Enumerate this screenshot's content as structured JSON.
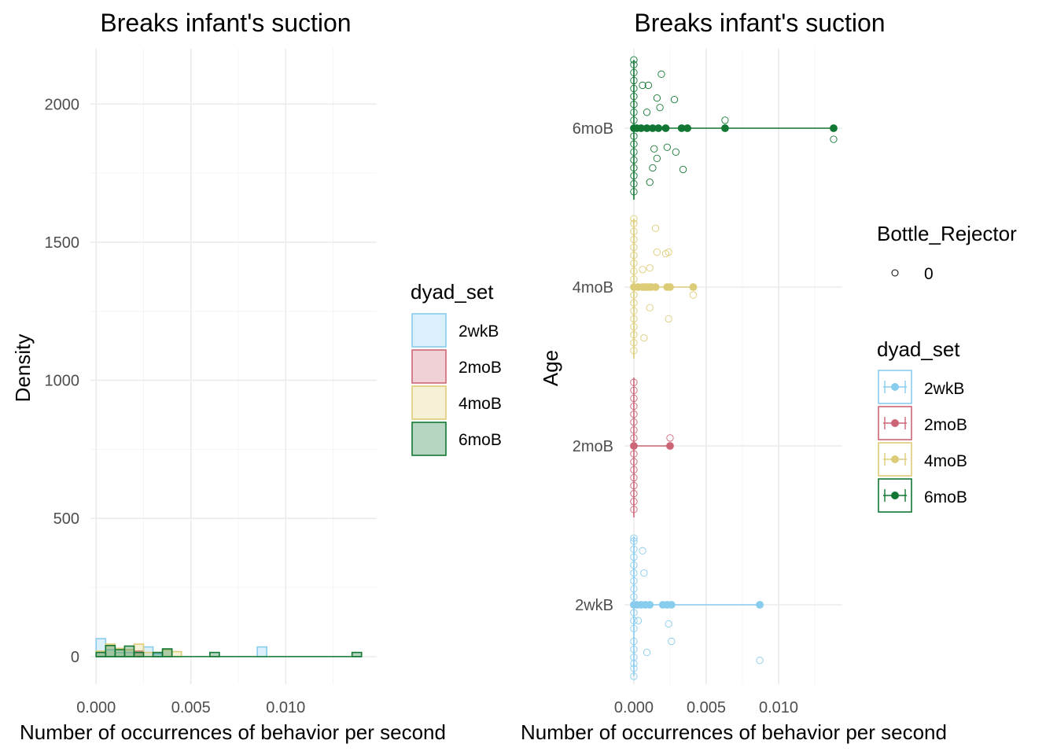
{
  "colors": {
    "2wkB": "#88CCEE",
    "2moB": "#CC6677",
    "4moB": "#DDCC77",
    "6moB": "#117733"
  },
  "chart_data": [
    {
      "type": "histogram",
      "title": "Breaks infant's suction",
      "xlabel": "Number of occurrences of behavior per second",
      "ylabel": "Density",
      "xlim": [
        -0.0003,
        0.0148
      ],
      "ylim": [
        -100,
        2200
      ],
      "xticks": [
        0.0,
        0.005,
        0.01
      ],
      "xtick_labels": [
        "0.000",
        "0.005",
        "0.010"
      ],
      "yticks": [
        0,
        500,
        1000,
        1500,
        2000
      ],
      "ytick_labels": [
        "0",
        "500",
        "1000",
        "1500",
        "2000"
      ],
      "grid": true,
      "bin_width": 0.0005,
      "legend": {
        "title": "dyad_set",
        "position": "right",
        "entries": [
          "2wkB",
          "2moB",
          "4moB",
          "6moB"
        ]
      },
      "series": [
        {
          "name": "2wkB",
          "bins": [
            {
              "x": 0.00025,
              "density": 65
            },
            {
              "x": 0.00075,
              "density": 25
            },
            {
              "x": 0.00125,
              "density": 15
            },
            {
              "x": 0.00175,
              "density": 15
            },
            {
              "x": 0.00225,
              "density": 20
            },
            {
              "x": 0.00275,
              "density": 35
            },
            {
              "x": 0.00325,
              "density": 10
            },
            {
              "x": 0.00875,
              "density": 35
            }
          ]
        },
        {
          "name": "2moB",
          "bins": [
            {
              "x": 0.00225,
              "density": 20
            }
          ]
        },
        {
          "name": "4moB",
          "bins": [
            {
              "x": 0.00025,
              "density": 20
            },
            {
              "x": 0.00075,
              "density": 45
            },
            {
              "x": 0.00125,
              "density": 30
            },
            {
              "x": 0.00175,
              "density": 25
            },
            {
              "x": 0.00225,
              "density": 45
            },
            {
              "x": 0.00275,
              "density": 15
            },
            {
              "x": 0.00375,
              "density": 25
            },
            {
              "x": 0.00425,
              "density": 18
            }
          ]
        },
        {
          "name": "6moB",
          "bins": [
            {
              "x": 0.00025,
              "density": 15
            },
            {
              "x": 0.00075,
              "density": 40
            },
            {
              "x": 0.00125,
              "density": 25
            },
            {
              "x": 0.00175,
              "density": 38
            },
            {
              "x": 0.00225,
              "density": 15
            },
            {
              "x": 0.00325,
              "density": 15
            },
            {
              "x": 0.00375,
              "density": 28
            },
            {
              "x": 0.00625,
              "density": 15
            },
            {
              "x": 0.01375,
              "density": 15
            }
          ]
        }
      ]
    },
    {
      "type": "scatter",
      "title": "Breaks infant's suction",
      "xlabel": "Number of occurrences of behavior per second",
      "ylabel": "Age",
      "xlim": [
        -0.00065,
        0.0144
      ],
      "xticks": [
        0.0,
        0.005,
        0.01
      ],
      "xtick_labels": [
        "0.000",
        "0.005",
        "0.010"
      ],
      "categories": [
        "2wkB",
        "2moB",
        "4moB",
        "6moB"
      ],
      "grid": true,
      "legends": [
        {
          "title": "Bottle_Rejector",
          "position": "right",
          "entries": [
            "0"
          ]
        },
        {
          "title": "dyad_set",
          "position": "right",
          "entries": [
            "2wkB",
            "2moB",
            "4moB",
            "6moB"
          ]
        }
      ],
      "series": [
        {
          "name": "2wkB",
          "summary_points": [
            0.0,
            0.0002,
            0.0005,
            0.0008,
            0.0011,
            0.002,
            0.0023,
            0.0026,
            0.0087
          ],
          "jittered_points": [
            {
              "x": 0.0,
              "dy": -0.45
            },
            {
              "x": 0.0,
              "dy": -0.4
            },
            {
              "x": 0.0,
              "dy": -0.37
            },
            {
              "x": 0.0,
              "dy": -0.33
            },
            {
              "x": 0.0,
              "dy": -0.28
            },
            {
              "x": 0.0,
              "dy": -0.23
            },
            {
              "x": 0.0,
              "dy": -0.15
            },
            {
              "x": 0.0,
              "dy": -0.1
            },
            {
              "x": 0.0,
              "dy": -0.05
            },
            {
              "x": 0.0,
              "dy": 0.05
            },
            {
              "x": 0.0,
              "dy": 0.1
            },
            {
              "x": 0.0,
              "dy": 0.15
            },
            {
              "x": 0.0,
              "dy": 0.2
            },
            {
              "x": 0.0,
              "dy": 0.25
            },
            {
              "x": 0.0,
              "dy": 0.3
            },
            {
              "x": 0.0,
              "dy": 0.35
            },
            {
              "x": 0.0,
              "dy": 0.4
            },
            {
              "x": 0.0,
              "dy": 0.42
            },
            {
              "x": 0.0006,
              "dy": 0.34
            },
            {
              "x": 0.0007,
              "dy": 0.2
            },
            {
              "x": 0.0009,
              "dy": -0.3
            },
            {
              "x": 0.0003,
              "dy": -0.1
            },
            {
              "x": 0.0024,
              "dy": -0.12
            },
            {
              "x": 0.0026,
              "dy": -0.23
            },
            {
              "x": 0.0087,
              "dy": -0.35
            }
          ]
        },
        {
          "name": "2moB",
          "summary_points": [
            0.0,
            0.0025
          ],
          "jittered_points": [
            {
              "x": 0.0,
              "dy": -0.4
            },
            {
              "x": 0.0,
              "dy": -0.35
            },
            {
              "x": 0.0,
              "dy": -0.3
            },
            {
              "x": 0.0,
              "dy": -0.25
            },
            {
              "x": 0.0,
              "dy": -0.2
            },
            {
              "x": 0.0,
              "dy": -0.15
            },
            {
              "x": 0.0,
              "dy": -0.1
            },
            {
              "x": 0.0,
              "dy": -0.05
            },
            {
              "x": 0.0,
              "dy": 0.05
            },
            {
              "x": 0.0,
              "dy": 0.1
            },
            {
              "x": 0.0,
              "dy": 0.15
            },
            {
              "x": 0.0,
              "dy": 0.2
            },
            {
              "x": 0.0,
              "dy": 0.25
            },
            {
              "x": 0.0,
              "dy": 0.3
            },
            {
              "x": 0.0,
              "dy": 0.35
            },
            {
              "x": 0.0,
              "dy": 0.4
            },
            {
              "x": 0.0025,
              "dy": 0.05
            }
          ]
        },
        {
          "name": "4moB",
          "summary_points": [
            0.0,
            0.0003,
            0.0006,
            0.0008,
            0.001,
            0.0012,
            0.0015,
            0.0023,
            0.0025,
            0.0041
          ],
          "jittered_points": [
            {
              "x": 0.0,
              "dy": -0.4
            },
            {
              "x": 0.0,
              "dy": -0.35
            },
            {
              "x": 0.0,
              "dy": -0.3
            },
            {
              "x": 0.0,
              "dy": -0.25
            },
            {
              "x": 0.0,
              "dy": -0.2
            },
            {
              "x": 0.0,
              "dy": -0.15
            },
            {
              "x": 0.0,
              "dy": -0.1
            },
            {
              "x": 0.0,
              "dy": -0.05
            },
            {
              "x": 0.0,
              "dy": 0.05
            },
            {
              "x": 0.0,
              "dy": 0.1
            },
            {
              "x": 0.0,
              "dy": 0.15
            },
            {
              "x": 0.0,
              "dy": 0.2
            },
            {
              "x": 0.0,
              "dy": 0.25
            },
            {
              "x": 0.0,
              "dy": 0.3
            },
            {
              "x": 0.0,
              "dy": 0.35
            },
            {
              "x": 0.0,
              "dy": 0.4
            },
            {
              "x": 0.0,
              "dy": 0.43
            },
            {
              "x": 0.0015,
              "dy": 0.37
            },
            {
              "x": 0.0016,
              "dy": 0.22
            },
            {
              "x": 0.0022,
              "dy": 0.21
            },
            {
              "x": 0.0024,
              "dy": 0.22
            },
            {
              "x": 0.0011,
              "dy": 0.12
            },
            {
              "x": 0.0006,
              "dy": 0.11
            },
            {
              "x": 0.0011,
              "dy": -0.13
            },
            {
              "x": 0.0024,
              "dy": -0.2
            },
            {
              "x": 0.0007,
              "dy": -0.32
            },
            {
              "x": 0.0041,
              "dy": -0.05
            }
          ]
        },
        {
          "name": "6moB",
          "summary_points": [
            0.0,
            0.0002,
            0.0005,
            0.0009,
            0.0013,
            0.0017,
            0.0022,
            0.0033,
            0.0037,
            0.0063,
            0.0138
          ],
          "jittered_points": [
            {
              "x": 0.0,
              "dy": -0.4
            },
            {
              "x": 0.0,
              "dy": -0.35
            },
            {
              "x": 0.0,
              "dy": -0.3
            },
            {
              "x": 0.0,
              "dy": -0.25
            },
            {
              "x": 0.0,
              "dy": -0.2
            },
            {
              "x": 0.0,
              "dy": -0.15
            },
            {
              "x": 0.0,
              "dy": -0.1
            },
            {
              "x": 0.0,
              "dy": -0.05
            },
            {
              "x": 0.0,
              "dy": 0.05
            },
            {
              "x": 0.0,
              "dy": 0.1
            },
            {
              "x": 0.0,
              "dy": 0.15
            },
            {
              "x": 0.0,
              "dy": 0.2
            },
            {
              "x": 0.0,
              "dy": 0.25
            },
            {
              "x": 0.0,
              "dy": 0.3
            },
            {
              "x": 0.0,
              "dy": 0.35
            },
            {
              "x": 0.0,
              "dy": 0.4
            },
            {
              "x": 0.0,
              "dy": 0.43
            },
            {
              "x": 0.0019,
              "dy": 0.34
            },
            {
              "x": 0.0006,
              "dy": 0.27
            },
            {
              "x": 0.001,
              "dy": 0.27
            },
            {
              "x": 0.0016,
              "dy": 0.19
            },
            {
              "x": 0.0028,
              "dy": 0.18
            },
            {
              "x": 0.0018,
              "dy": 0.13
            },
            {
              "x": 0.0009,
              "dy": 0.1
            },
            {
              "x": 0.0063,
              "dy": 0.05
            },
            {
              "x": 0.0138,
              "dy": -0.07
            },
            {
              "x": 0.0023,
              "dy": -0.12
            },
            {
              "x": 0.0014,
              "dy": -0.13
            },
            {
              "x": 0.0029,
              "dy": -0.15
            },
            {
              "x": 0.0016,
              "dy": -0.19
            },
            {
              "x": 0.0013,
              "dy": -0.25
            },
            {
              "x": 0.0034,
              "dy": -0.26
            },
            {
              "x": 0.0011,
              "dy": -0.34
            }
          ]
        }
      ]
    }
  ]
}
